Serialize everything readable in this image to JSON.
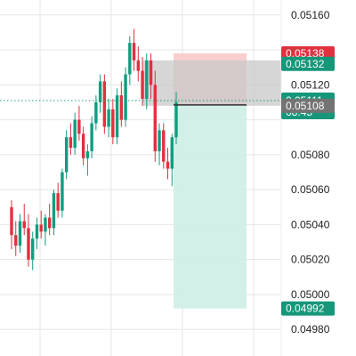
{
  "chart_data": {
    "type": "candlestick",
    "y_ticks": [
      "0.05160",
      "0.05120",
      "0.05080",
      "0.05060",
      "0.05040",
      "0.05020",
      "0.05000",
      "0.04980"
    ],
    "y_tick_values": [
      0.0516,
      0.0512,
      0.0508,
      0.0506,
      0.0504,
      0.0502,
      0.05,
      0.0498
    ],
    "ylim": [
      0.04974,
      0.05166
    ],
    "grid": true,
    "colors": {
      "up": "#0f9d7f",
      "down": "#e0313f",
      "stop_zone": "#f7c9c9",
      "target_zone": "#cdeee4",
      "entry_zone": "#c8c8c8",
      "entry_line": "#333333",
      "current_line": "#1a9b72",
      "grid": "#e6e6e6"
    },
    "price_tags": {
      "stop_loss": {
        "label": "0.05138",
        "value": 0.05138,
        "color": "#e0313f"
      },
      "ask": {
        "label": "0.05132",
        "value": 0.05132,
        "color": "#16977a"
      },
      "current": {
        "label": "0.05111",
        "countdown": "08:45",
        "value": 0.05111,
        "color": "#16977a"
      },
      "bid": {
        "label": "0.05108",
        "value": 0.05108,
        "color": "#737373"
      },
      "take_profit": {
        "label": "0.04992",
        "value": 0.04992,
        "color": "#16977a"
      }
    },
    "position": {
      "entry": 0.05108,
      "entry_zone_top": 0.05134,
      "stop": 0.05138,
      "target": 0.04992
    },
    "candles": [
      [
        0.0505,
        0.05054,
        0.05026,
        0.05034
      ],
      [
        0.05034,
        0.05042,
        0.05022,
        0.05028
      ],
      [
        0.05028,
        0.05046,
        0.05024,
        0.05042
      ],
      [
        0.05042,
        0.05052,
        0.05034,
        0.05038
      ],
      [
        0.05038,
        0.05046,
        0.05016,
        0.0502
      ],
      [
        0.0502,
        0.05036,
        0.05014,
        0.05032
      ],
      [
        0.05032,
        0.05044,
        0.05026,
        0.0504
      ],
      [
        0.0504,
        0.05048,
        0.05032,
        0.05036
      ],
      [
        0.05036,
        0.05046,
        0.05028,
        0.05044
      ],
      [
        0.05044,
        0.05052,
        0.05034,
        0.05038
      ],
      [
        0.05038,
        0.0506,
        0.05034,
        0.05058
      ],
      [
        0.05058,
        0.05064,
        0.05044,
        0.05048
      ],
      [
        0.05048,
        0.05072,
        0.05044,
        0.0507
      ],
      [
        0.0507,
        0.05094,
        0.05066,
        0.0509
      ],
      [
        0.0509,
        0.05098,
        0.0508,
        0.05084
      ],
      [
        0.05084,
        0.05104,
        0.0508,
        0.051
      ],
      [
        0.051,
        0.05108,
        0.05088,
        0.05092
      ],
      [
        0.05092,
        0.05096,
        0.05074,
        0.05078
      ],
      [
        0.05078,
        0.05086,
        0.05068,
        0.05082
      ],
      [
        0.05082,
        0.05102,
        0.05078,
        0.05098
      ],
      [
        0.05098,
        0.05114,
        0.05094,
        0.0511
      ],
      [
        0.0511,
        0.05126,
        0.05104,
        0.05122
      ],
      [
        0.05122,
        0.05126,
        0.05092,
        0.05096
      ],
      [
        0.05096,
        0.05112,
        0.0509,
        0.05106
      ],
      [
        0.05106,
        0.05112,
        0.05086,
        0.0509
      ],
      [
        0.0509,
        0.05118,
        0.05086,
        0.05114
      ],
      [
        0.05114,
        0.05122,
        0.05096,
        0.051
      ],
      [
        0.051,
        0.0513,
        0.05096,
        0.05126
      ],
      [
        0.05126,
        0.05148,
        0.0512,
        0.05144
      ],
      [
        0.05144,
        0.05152,
        0.05128,
        0.05134
      ],
      [
        0.05134,
        0.05142,
        0.05122,
        0.05128
      ],
      [
        0.05128,
        0.05136,
        0.05108,
        0.05112
      ],
      [
        0.05112,
        0.05138,
        0.05106,
        0.05134
      ],
      [
        0.05134,
        0.05138,
        0.05112,
        0.0512
      ],
      [
        0.0512,
        0.05128,
        0.05076,
        0.05082
      ],
      [
        0.05082,
        0.05098,
        0.05074,
        0.05094
      ],
      [
        0.05094,
        0.05098,
        0.05072,
        0.05076
      ],
      [
        0.05076,
        0.05084,
        0.05066,
        0.05072
      ],
      [
        0.05072,
        0.05092,
        0.05062,
        0.0509
      ],
      [
        0.0509,
        0.05116,
        0.05086,
        0.0511
      ]
    ]
  }
}
